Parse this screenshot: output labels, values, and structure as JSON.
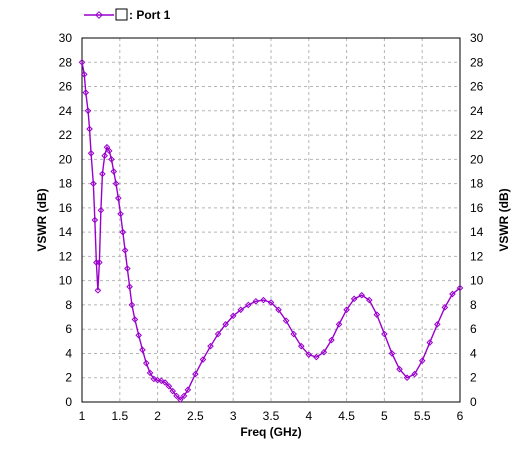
{
  "chart_data": {
    "type": "line",
    "title": "",
    "xlabel": "Freq (GHz)",
    "ylabel_left": "VSWR (dB)",
    "ylabel_right": "VSWR (dB)",
    "xlim": [
      1,
      6
    ],
    "ylim": [
      0,
      30
    ],
    "x_ticks": [
      1,
      1.5,
      2,
      2.5,
      3,
      3.5,
      4,
      4.5,
      5,
      5.5,
      6
    ],
    "x_tick_labels": [
      "1",
      "1.5",
      "2",
      "2.5",
      "3",
      "3.5",
      "4",
      "4.5",
      "5",
      "5.5",
      "6"
    ],
    "y_ticks": [
      0,
      2,
      4,
      6,
      8,
      10,
      12,
      14,
      16,
      18,
      20,
      22,
      24,
      26,
      28,
      30
    ],
    "y_tick_labels": [
      "0",
      "2",
      "4",
      "6",
      "8",
      "10",
      "12",
      "14",
      "16",
      "18",
      "20",
      "22",
      "24",
      "26",
      "28",
      "30"
    ],
    "grid": true,
    "legend_position": "top-left",
    "series": [
      {
        "name": "Port 1",
        "legend_label": ": Port 1",
        "color": "#9900cc",
        "marker": "diamond",
        "points": [
          [
            1.0,
            28.0
          ],
          [
            1.03,
            27.0
          ],
          [
            1.05,
            25.5
          ],
          [
            1.08,
            24.0
          ],
          [
            1.1,
            22.5
          ],
          [
            1.12,
            20.5
          ],
          [
            1.15,
            18.0
          ],
          [
            1.17,
            15.0
          ],
          [
            1.19,
            11.5
          ],
          [
            1.21,
            9.2
          ],
          [
            1.23,
            11.5
          ],
          [
            1.25,
            15.8
          ],
          [
            1.27,
            18.8
          ],
          [
            1.3,
            20.3
          ],
          [
            1.33,
            21.0
          ],
          [
            1.36,
            20.7
          ],
          [
            1.39,
            20.0
          ],
          [
            1.42,
            19.0
          ],
          [
            1.45,
            18.0
          ],
          [
            1.48,
            16.8
          ],
          [
            1.51,
            15.5
          ],
          [
            1.54,
            14.0
          ],
          [
            1.57,
            12.5
          ],
          [
            1.6,
            11.0
          ],
          [
            1.63,
            9.5
          ],
          [
            1.66,
            8.0
          ],
          [
            1.7,
            6.8
          ],
          [
            1.75,
            5.5
          ],
          [
            1.8,
            4.3
          ],
          [
            1.85,
            3.2
          ],
          [
            1.9,
            2.4
          ],
          [
            1.95,
            1.9
          ],
          [
            2.0,
            1.8
          ],
          [
            2.05,
            1.75
          ],
          [
            2.1,
            1.6
          ],
          [
            2.15,
            1.3
          ],
          [
            2.2,
            0.9
          ],
          [
            2.25,
            0.5
          ],
          [
            2.3,
            0.2
          ],
          [
            2.35,
            0.5
          ],
          [
            2.4,
            1.0
          ],
          [
            2.5,
            2.3
          ],
          [
            2.6,
            3.5
          ],
          [
            2.7,
            4.6
          ],
          [
            2.8,
            5.6
          ],
          [
            2.9,
            6.4
          ],
          [
            3.0,
            7.1
          ],
          [
            3.1,
            7.6
          ],
          [
            3.2,
            8.0
          ],
          [
            3.3,
            8.3
          ],
          [
            3.4,
            8.4
          ],
          [
            3.5,
            8.2
          ],
          [
            3.6,
            7.6
          ],
          [
            3.7,
            6.7
          ],
          [
            3.8,
            5.6
          ],
          [
            3.9,
            4.6
          ],
          [
            4.0,
            3.9
          ],
          [
            4.1,
            3.7
          ],
          [
            4.2,
            4.1
          ],
          [
            4.3,
            5.1
          ],
          [
            4.4,
            6.4
          ],
          [
            4.5,
            7.6
          ],
          [
            4.6,
            8.5
          ],
          [
            4.7,
            8.8
          ],
          [
            4.8,
            8.4
          ],
          [
            4.9,
            7.2
          ],
          [
            5.0,
            5.6
          ],
          [
            5.1,
            4.0
          ],
          [
            5.2,
            2.7
          ],
          [
            5.3,
            2.0
          ],
          [
            5.4,
            2.3
          ],
          [
            5.5,
            3.4
          ],
          [
            5.6,
            4.9
          ],
          [
            5.7,
            6.4
          ],
          [
            5.8,
            7.8
          ],
          [
            5.9,
            8.9
          ],
          [
            6.0,
            9.4
          ]
        ]
      }
    ]
  }
}
